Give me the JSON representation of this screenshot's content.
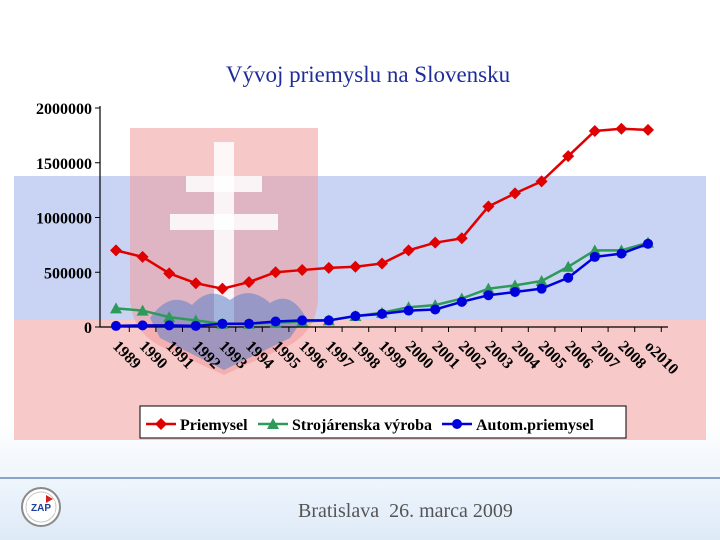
{
  "chart_data": {
    "type": "line",
    "title": "Vývoj priemyslu na Slovensku",
    "xlabel": "",
    "ylabel": "",
    "x": [
      "1989",
      "1990",
      "1991",
      "1992",
      "1993",
      "1994",
      "1995",
      "1996",
      "1997",
      "1998",
      "1999",
      "2000",
      "2001",
      "2002",
      "2003",
      "2004",
      "2005",
      "2006",
      "2007",
      "2008",
      "o2010"
    ],
    "yticks": [
      "2000000",
      "1500000",
      "1000000",
      "500000",
      "0"
    ],
    "ylim": [
      0,
      2000000
    ],
    "grid": false,
    "legend_position": "bottom",
    "series": [
      {
        "name": "Priemysel",
        "color": "#e00000",
        "marker": "diamond",
        "values": [
          700000,
          640000,
          490000,
          400000,
          350000,
          410000,
          500000,
          520000,
          540000,
          550000,
          580000,
          700000,
          770000,
          810000,
          1100000,
          1220000,
          1330000,
          1560000,
          1790000,
          1810000,
          1800000
        ]
      },
      {
        "name": "Strojárenska výroba",
        "color": "#2e9a5a",
        "marker": "triangle",
        "values": [
          170000,
          150000,
          90000,
          60000,
          30000,
          30000,
          40000,
          50000,
          60000,
          100000,
          130000,
          180000,
          200000,
          260000,
          350000,
          380000,
          420000,
          550000,
          700000,
          700000,
          770000
        ]
      },
      {
        "name": "Autom.priemysel",
        "color": "#0000dd",
        "marker": "circle",
        "values": [
          10000,
          15000,
          15000,
          10000,
          30000,
          30000,
          50000,
          60000,
          60000,
          100000,
          120000,
          150000,
          160000,
          230000,
          290000,
          320000,
          350000,
          450000,
          640000,
          670000,
          760000
        ]
      }
    ]
  },
  "footer": {
    "text": "Bratislava  26. marca 2009",
    "logo_text": "ZAP"
  }
}
